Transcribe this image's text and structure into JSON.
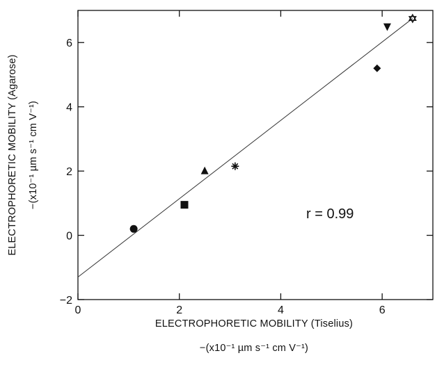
{
  "chart_data": {
    "type": "scatter",
    "xlabel": "ELECTROPHORETIC MOBILITY (Tiselius)",
    "xlabel_units": "−(x10⁻¹ µm s⁻¹ cm V⁻¹)",
    "ylabel": "ELECTROPHORETIC MOBILITY (Agarose)",
    "ylabel_units": "−(x10⁻¹ µm s⁻¹ cm V⁻¹)",
    "xlim": [
      0,
      7
    ],
    "ylim": [
      -2,
      7
    ],
    "x_ticks": [
      0,
      2,
      4,
      6
    ],
    "y_ticks": [
      -2,
      0,
      2,
      4,
      6
    ],
    "x_tick_labels": [
      "0",
      "2",
      "4",
      "6"
    ],
    "y_tick_labels": [
      "−2",
      "0",
      "2",
      "4",
      "6"
    ],
    "grid": false,
    "points": [
      {
        "x": 1.1,
        "y": 0.2,
        "marker": "circle"
      },
      {
        "x": 2.1,
        "y": 0.95,
        "marker": "square"
      },
      {
        "x": 2.5,
        "y": 2.0,
        "marker": "triangle-up"
      },
      {
        "x": 3.1,
        "y": 2.15,
        "marker": "asterisk"
      },
      {
        "x": 5.9,
        "y": 5.2,
        "marker": "diamond"
      },
      {
        "x": 6.1,
        "y": 6.5,
        "marker": "triangle-down"
      },
      {
        "x": 6.6,
        "y": 6.75,
        "marker": "star-of-david"
      }
    ],
    "fit_line": {
      "x": [
        0,
        6.6
      ],
      "y": [
        -1.3,
        6.75
      ]
    },
    "annotation": "r  =  0.99"
  }
}
